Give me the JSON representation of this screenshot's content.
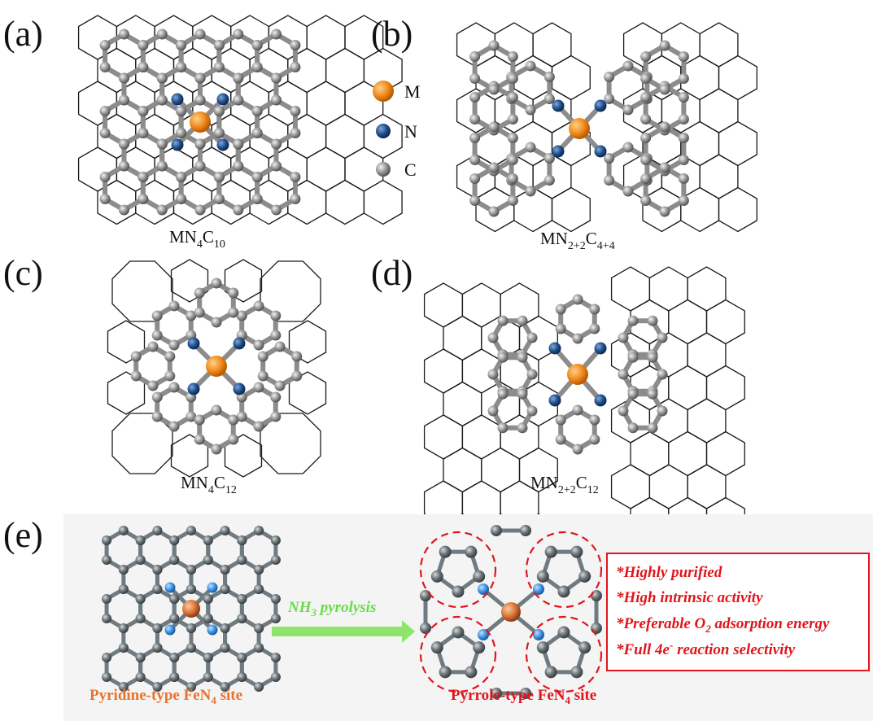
{
  "panels": {
    "a": {
      "letter": "(a)",
      "caption_main": "MN",
      "caption_sub1": "4",
      "caption_mid": "C",
      "caption_sub2": "10"
    },
    "b": {
      "letter": "(b)",
      "caption_main": "MN",
      "caption_sub1": "2+2",
      "caption_mid": "C",
      "caption_sub2": "4+4"
    },
    "c": {
      "letter": "(c)",
      "caption_main": "MN",
      "caption_sub1": "4",
      "caption_mid": "C",
      "caption_sub2": "12"
    },
    "d": {
      "letter": "(d)",
      "caption_main": "MN",
      "caption_sub1": "2+2",
      "caption_mid": "C",
      "caption_sub2": "12"
    },
    "e": {
      "letter": "(e)"
    }
  },
  "legend": {
    "items": [
      {
        "label": "M",
        "color": "#f08a1c"
      },
      {
        "label": "N",
        "color": "#1f4e8c"
      },
      {
        "label": "C",
        "color": "#8f8f8f"
      }
    ]
  },
  "panel_e": {
    "arrow_label_main": "NH",
    "arrow_label_sub": "3",
    "arrow_label_rest": " pyrolysis",
    "left_site_main": "Pyridine-type FeN",
    "left_site_sub": "4",
    "left_site_rest": " site",
    "right_site_main": "Pyrrole-type FeN",
    "right_site_sub": "4",
    "right_site_rest": " site",
    "properties": [
      "*Highly purified",
      "*High intrinsic activity",
      "*Preferable O2 adsorption energy",
      "*Full 4e- reaction selectivity"
    ],
    "property_3_pre": "*Preferable O",
    "property_3_sub": "2",
    "property_3_post": " adsorption energy",
    "property_4_pre": "*Full 4e",
    "property_4_sup": "-",
    "property_4_post": " reaction selectivity"
  },
  "colors": {
    "metal": "#f08a1c",
    "nitrogen": "#1f4e8c",
    "carbon": "#8f8f8f",
    "fe": "#d9733a",
    "n_light": "#3b8fe0",
    "c_dark": "#6b7478",
    "highlight_red": "#e0161c",
    "arrow_green": "#7be05a"
  }
}
